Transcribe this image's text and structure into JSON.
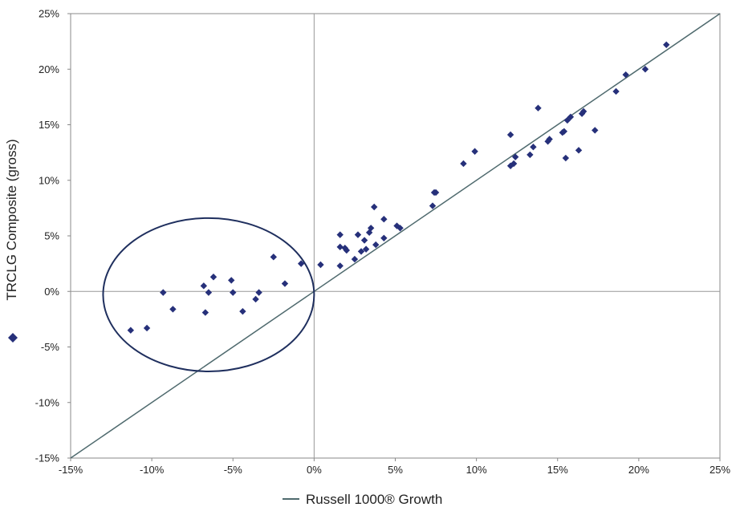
{
  "chart_data": {
    "type": "scatter",
    "title": "",
    "xlabel": "Russell 1000® Growth",
    "ylabel": "TRCLG Composite (gross)",
    "xlim": [
      -15,
      25
    ],
    "ylim": [
      -15,
      25
    ],
    "x_ticks": [
      "-15%",
      "-10%",
      "-5%",
      "0%",
      "5%",
      "10%",
      "15%",
      "20%",
      "25%"
    ],
    "y_ticks": [
      "-15%",
      "-10%",
      "-5%",
      "0%",
      "5%",
      "10%",
      "15%",
      "20%",
      "25%"
    ],
    "grid": false,
    "zero_lines": true,
    "reference_line": {
      "type": "y=x",
      "color": "#4f6a6e",
      "legend_label": "Russell 1000® Growth"
    },
    "series": [
      {
        "name": "TRCLG Composite (gross)",
        "marker": "diamond",
        "color": "#26307a",
        "points": [
          [
            -11.3,
            -3.5
          ],
          [
            -10.3,
            -3.3
          ],
          [
            -9.3,
            -0.1
          ],
          [
            -8.7,
            -1.6
          ],
          [
            -6.8,
            0.5
          ],
          [
            -6.7,
            -1.9
          ],
          [
            -6.5,
            -0.1
          ],
          [
            -6.2,
            1.3
          ],
          [
            -5.1,
            1.0
          ],
          [
            -5.0,
            -0.1
          ],
          [
            -4.4,
            -1.8
          ],
          [
            -3.6,
            -0.7
          ],
          [
            -3.4,
            -0.1
          ],
          [
            -2.5,
            3.1
          ],
          [
            -1.8,
            0.7
          ],
          [
            -0.8,
            2.5
          ],
          [
            0.4,
            2.4
          ],
          [
            1.6,
            2.3
          ],
          [
            1.6,
            4.0
          ],
          [
            1.6,
            5.1
          ],
          [
            1.9,
            3.9
          ],
          [
            2.0,
            3.7
          ],
          [
            2.5,
            2.9
          ],
          [
            2.7,
            5.1
          ],
          [
            2.9,
            3.6
          ],
          [
            3.1,
            4.6
          ],
          [
            3.2,
            3.8
          ],
          [
            3.4,
            5.3
          ],
          [
            3.5,
            5.7
          ],
          [
            3.7,
            7.6
          ],
          [
            3.8,
            4.2
          ],
          [
            4.3,
            6.5
          ],
          [
            4.3,
            4.8
          ],
          [
            5.1,
            5.9
          ],
          [
            5.3,
            5.7
          ],
          [
            7.3,
            7.7
          ],
          [
            7.4,
            8.9
          ],
          [
            7.5,
            8.9
          ],
          [
            9.2,
            11.5
          ],
          [
            9.9,
            12.6
          ],
          [
            12.1,
            11.3
          ],
          [
            12.1,
            14.1
          ],
          [
            12.3,
            11.5
          ],
          [
            12.4,
            12.1
          ],
          [
            13.3,
            12.3
          ],
          [
            13.5,
            13.0
          ],
          [
            13.8,
            16.5
          ],
          [
            14.4,
            13.5
          ],
          [
            14.5,
            13.7
          ],
          [
            15.3,
            14.3
          ],
          [
            15.4,
            14.4
          ],
          [
            15.5,
            12.0
          ],
          [
            15.6,
            15.4
          ],
          [
            15.8,
            15.7
          ],
          [
            16.3,
            12.7
          ],
          [
            16.5,
            16.0
          ],
          [
            16.6,
            16.2
          ],
          [
            17.3,
            14.5
          ],
          [
            18.6,
            18.0
          ],
          [
            19.2,
            19.5
          ],
          [
            20.4,
            20.0
          ],
          [
            21.7,
            22.2
          ]
        ]
      }
    ],
    "annotations": [
      {
        "type": "ellipse",
        "center": [
          -6.5,
          -0.3
        ],
        "radius_x": 6.5,
        "radius_y": 6.9,
        "color": "#1f2f5e"
      }
    ]
  }
}
